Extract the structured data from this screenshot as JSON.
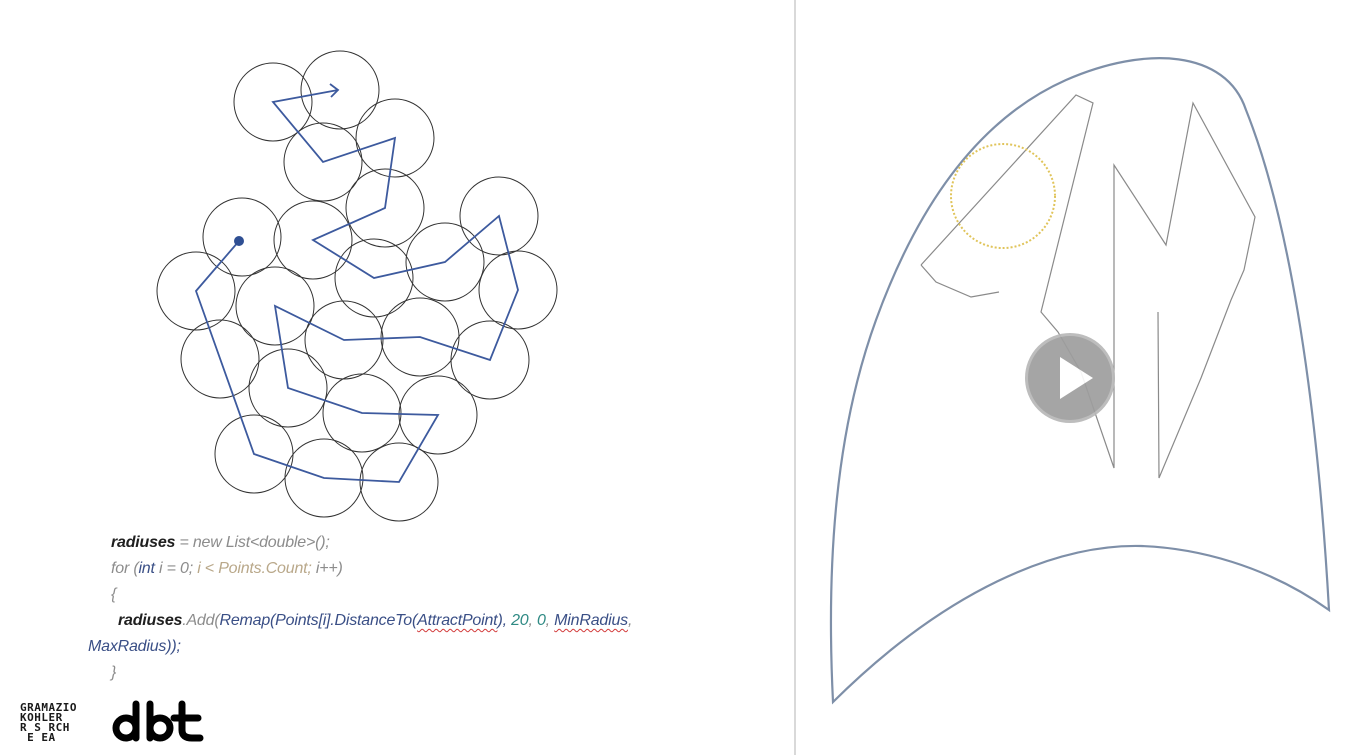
{
  "code": {
    "line1_kw": "radiuses",
    "line1_rest": " = new List<double>();",
    "line2_a": "for (",
    "line2_int": "int",
    "line2_b": " i = 0; ",
    "line2_c": "i < Points.Count; ",
    "line2_d": "i++)",
    "line3": "{",
    "line4_kw": "radiuses",
    "line4_a": ".Add(",
    "line4_remap": "Remap(Points[i].DistanceTo(",
    "line4_attract": "AttractPoint",
    "line4_b": "), ",
    "line4_20": "20",
    "line4_c": ", ",
    "line4_0": "0",
    "line4_d": ", ",
    "line4_min": "MinRadius",
    "line4_e": ",",
    "line5": "MaxRadius));",
    "line6": "}"
  },
  "logo": {
    "line1": "GRAMAZIO",
    "line2": "KOHLER",
    "line3": "R S RCH",
    "line4": " E EA",
    "brand": "dbt"
  },
  "video": {
    "play_icon": "play-icon"
  },
  "colors": {
    "path_blue": "#3d5a9e",
    "circle_stroke": "#333333",
    "highlight_yellow": "#e0c45a"
  }
}
